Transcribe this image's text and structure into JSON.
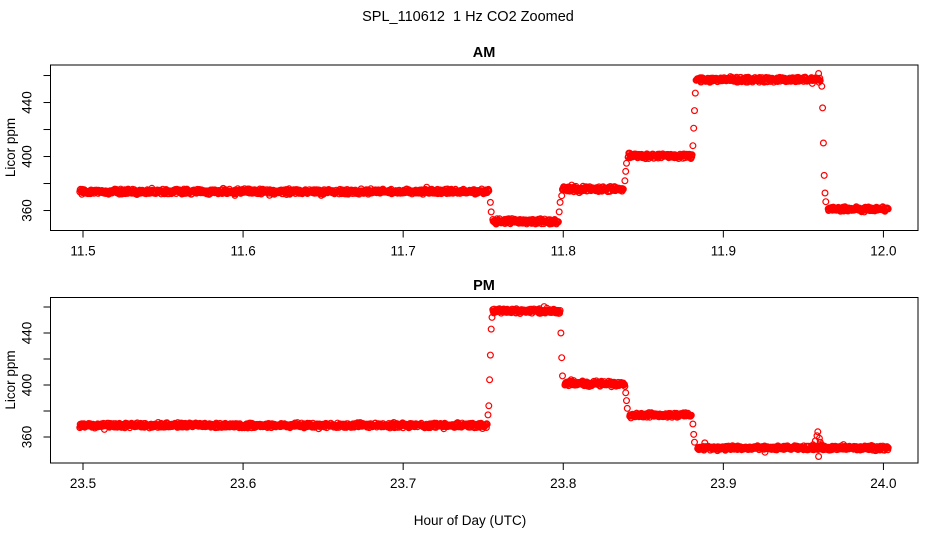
{
  "main_title": "SPL_110612  1 Hz CO2 Zoomed",
  "x_axis_label": "Hour of Day (UTC)",
  "marker_color": "#FF0000",
  "chart_data": [
    {
      "type": "scatter",
      "panel": "AM",
      "title": "AM",
      "ylabel": "Licor ppm",
      "xlabel": "",
      "marker": "open-circle",
      "marker_color": "#FF0000",
      "grid": false,
      "legend": "none",
      "xlim": [
        11.4797,
        12.0216
      ],
      "ylim": [
        345.2,
        467.8
      ],
      "xticks": [
        11.5,
        11.6,
        11.7,
        11.8,
        11.9,
        12.0
      ],
      "yticks": [
        360,
        380,
        400,
        420,
        440,
        460
      ],
      "ytick_labels": [
        360,
        400,
        440
      ],
      "segments": [
        {
          "x0": 11.498,
          "x1": 11.7535,
          "y": 374.0,
          "noise_ppm": 1.1
        },
        {
          "x0": 11.756,
          "x1": 11.797,
          "y": 352.0,
          "noise_ppm": 1.1
        },
        {
          "x0": 11.7995,
          "x1": 11.8375,
          "y": 376.0,
          "noise_ppm": 1.1
        },
        {
          "x0": 11.8405,
          "x1": 11.8805,
          "y": 400.5,
          "noise_ppm": 1.1
        },
        {
          "x0": 11.883,
          "x1": 11.9605,
          "y": 457.0,
          "noise_ppm": 1.1
        },
        {
          "x0": 11.9655,
          "x1": 12.003,
          "y": 361.0,
          "noise_ppm": 1.0
        }
      ],
      "transition_points": [
        {
          "x": 11.7545,
          "y": 366
        },
        {
          "x": 11.755,
          "y": 359
        },
        {
          "x": 11.7975,
          "y": 359
        },
        {
          "x": 11.798,
          "y": 366
        },
        {
          "x": 11.799,
          "y": 371
        },
        {
          "x": 11.8385,
          "y": 382
        },
        {
          "x": 11.839,
          "y": 389
        },
        {
          "x": 11.8395,
          "y": 395
        },
        {
          "x": 11.881,
          "y": 408
        },
        {
          "x": 11.8815,
          "y": 421
        },
        {
          "x": 11.882,
          "y": 434
        },
        {
          "x": 11.8825,
          "y": 447
        },
        {
          "x": 11.9595,
          "y": 461.5
        },
        {
          "x": 11.9615,
          "y": 452
        },
        {
          "x": 11.962,
          "y": 436
        },
        {
          "x": 11.9625,
          "y": 410
        },
        {
          "x": 11.963,
          "y": 386
        },
        {
          "x": 11.9635,
          "y": 373
        },
        {
          "x": 11.964,
          "y": 366.5
        }
      ]
    },
    {
      "type": "scatter",
      "panel": "PM",
      "title": "PM",
      "ylabel": "Licor ppm",
      "xlabel": "Hour of Day (UTC)",
      "marker": "open-circle",
      "marker_color": "#FF0000",
      "grid": false,
      "legend": "none",
      "xlim": [
        23.4797,
        24.0216
      ],
      "ylim": [
        340.0,
        467.3
      ],
      "xticks": [
        23.5,
        23.6,
        23.7,
        23.8,
        23.9,
        24.0
      ],
      "yticks": [
        360,
        380,
        400,
        420,
        440,
        460
      ],
      "ytick_labels": [
        360,
        400,
        440
      ],
      "segments": [
        {
          "x0": 23.498,
          "x1": 23.7525,
          "y": 369.0,
          "noise_ppm": 1.1
        },
        {
          "x0": 23.756,
          "x1": 23.798,
          "y": 457.0,
          "noise_ppm": 1.1
        },
        {
          "x0": 23.801,
          "x1": 23.8385,
          "y": 401.0,
          "noise_ppm": 1.1
        },
        {
          "x0": 23.8415,
          "x1": 23.88,
          "y": 377.0,
          "noise_ppm": 1.0
        },
        {
          "x0": 23.884,
          "x1": 24.003,
          "y": 351.5,
          "noise_ppm": 1.0
        }
      ],
      "transition_points": [
        {
          "x": 23.753,
          "y": 377
        },
        {
          "x": 23.7535,
          "y": 384
        },
        {
          "x": 23.754,
          "y": 404
        },
        {
          "x": 23.7545,
          "y": 423
        },
        {
          "x": 23.755,
          "y": 443
        },
        {
          "x": 23.7555,
          "y": 452
        },
        {
          "x": 23.7985,
          "y": 440
        },
        {
          "x": 23.799,
          "y": 421
        },
        {
          "x": 23.7995,
          "y": 407
        },
        {
          "x": 23.839,
          "y": 394
        },
        {
          "x": 23.8395,
          "y": 388
        },
        {
          "x": 23.84,
          "y": 382
        },
        {
          "x": 23.881,
          "y": 370
        },
        {
          "x": 23.8815,
          "y": 362
        },
        {
          "x": 23.882,
          "y": 356
        },
        {
          "x": 23.956,
          "y": 354
        },
        {
          "x": 23.9575,
          "y": 357
        },
        {
          "x": 23.9585,
          "y": 361
        },
        {
          "x": 23.959,
          "y": 364
        },
        {
          "x": 23.9595,
          "y": 345
        },
        {
          "x": 23.96,
          "y": 359
        },
        {
          "x": 23.9605,
          "y": 356
        },
        {
          "x": 23.9615,
          "y": 354
        },
        {
          "x": 23.963,
          "y": 353
        }
      ]
    }
  ]
}
